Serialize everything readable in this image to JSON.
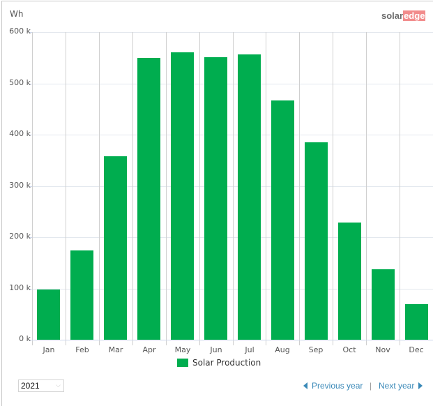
{
  "header": {
    "unit_label": "Wh",
    "logo": {
      "part1": "solar",
      "part2": "edge"
    }
  },
  "colors": {
    "bar": "#00ad4f",
    "link": "#3a89b8",
    "logo_accent": "#f28c8c"
  },
  "chart_data": {
    "type": "bar",
    "title": "",
    "xlabel": "",
    "ylabel": "Wh",
    "ylim": [
      0,
      600000
    ],
    "yticks": [
      "0 k",
      "100 k",
      "200 k",
      "300 k",
      "400 k",
      "500 k",
      "600 k"
    ],
    "categories": [
      "Jan",
      "Feb",
      "Mar",
      "Apr",
      "May",
      "Jun",
      "Jul",
      "Aug",
      "Sep",
      "Oct",
      "Nov",
      "Dec"
    ],
    "series": [
      {
        "name": "Solar Production",
        "values": [
          98000,
          174000,
          358000,
          550000,
          561000,
          551000,
          556000,
          467000,
          385000,
          229000,
          137000,
          69000
        ]
      }
    ],
    "grid": true,
    "legend_position": "bottom"
  },
  "legend": {
    "label": "Solar Production"
  },
  "controls": {
    "year_selected": "2021",
    "previous_label": "Previous year",
    "separator": "|",
    "next_label": "Next year"
  }
}
